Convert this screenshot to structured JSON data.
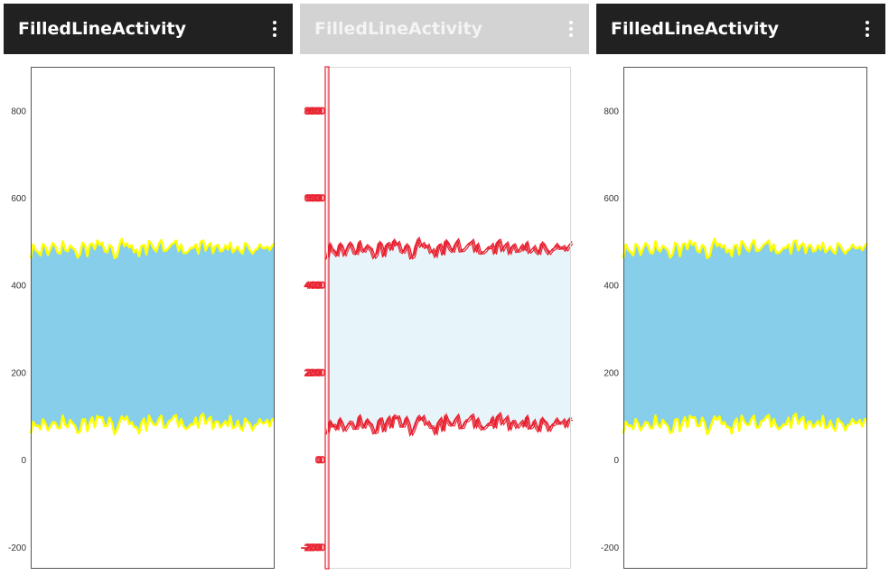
{
  "panes": [
    {
      "title": "FilledLineActivity",
      "variant": "normal"
    },
    {
      "title": "FilledLineActivity",
      "variant": "faded"
    },
    {
      "title": "FilledLineActivity",
      "variant": "normal"
    }
  ],
  "menu_icon": "more-vert-icon",
  "colors": {
    "appbar": "#212121",
    "appbar_faded": "#d3d3d3",
    "fill": "#87ceeb",
    "line": "#ffff00",
    "highlight": "#e8202f"
  },
  "chart_data": {
    "type": "area",
    "ylim": [
      -250,
      900
    ],
    "yticks": [
      "800",
      "600",
      "400",
      "200",
      "0",
      "-200"
    ],
    "ytick_values": [
      800,
      600,
      400,
      200,
      0,
      -200
    ],
    "x_count": 100,
    "series": [
      {
        "values": [
          461,
          493,
          480,
          475,
          468,
          494,
          487,
          469,
          483,
          496,
          489,
          474,
          472,
          500,
          481,
          477,
          490,
          485,
          480,
          463,
          470,
          497,
          491,
          466,
          493,
          495,
          482,
          502,
          492,
          497,
          478,
          475,
          492,
          486,
          462,
          466,
          491,
          506,
          489,
          495,
          486,
          491,
          475,
          481,
          466,
          490,
          492,
          470,
          501,
          494,
          482,
          477,
          494,
          503,
          478,
          479,
          485,
          493,
          496,
          502,
          478,
          493,
          474,
          473,
          478,
          485,
          485,
          493,
          472,
          499,
          502,
          479,
          491,
          496,
          473,
          489,
          492,
          477,
          479,
          491,
          481,
          497,
          475,
          481,
          488,
          477,
          472,
          496,
          491,
          480,
          472,
          480,
          483,
          493,
          485,
          484,
          488,
          480,
          490,
          497
        ]
      },
      {
        "values": [
          60,
          87,
          77,
          78,
          70,
          93,
          82,
          67,
          76,
          86,
          84,
          72,
          72,
          101,
          80,
          74,
          91,
          83,
          78,
          61,
          64,
          92,
          93,
          65,
          86,
          97,
          74,
          100,
          96,
          97,
          77,
          77,
          96,
          84,
          58,
          69,
          85,
          99,
          91,
          99,
          81,
          86,
          75,
          74,
          60,
          85,
          94,
          66,
          101,
          88,
          80,
          79,
          93,
          101,
          73,
          74,
          88,
          90,
          98,
          102,
          75,
          93,
          77,
          70,
          74,
          81,
          80,
          96,
          73,
          100,
          105,
          82,
          92,
          98,
          70,
          87,
          87,
          74,
          81,
          88,
          77,
          100,
          72,
          75,
          89,
          74,
          66,
          94,
          87,
          82,
          67,
          79,
          81,
          93,
          83,
          84,
          91,
          76,
          93,
          92
        ]
      }
    ]
  }
}
